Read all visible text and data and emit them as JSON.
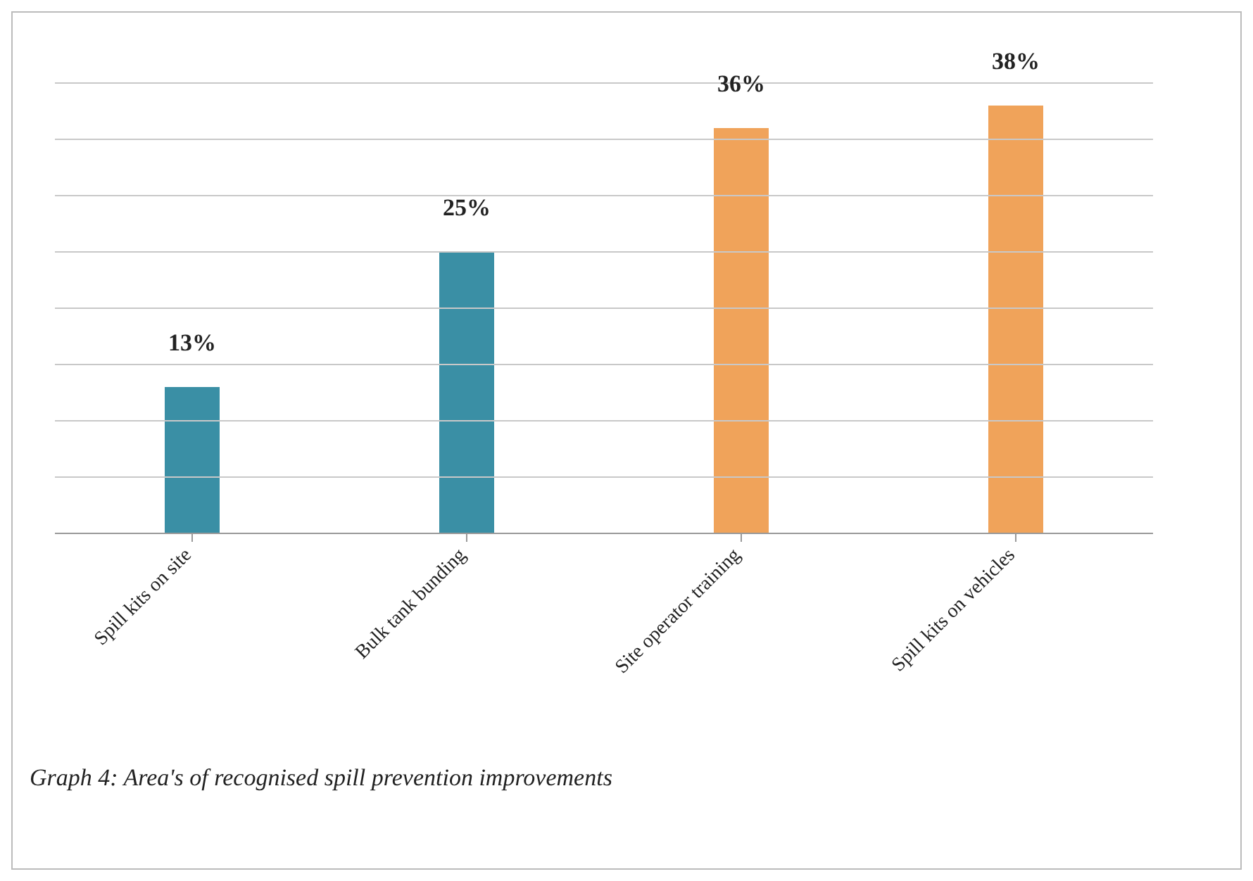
{
  "chart_data": {
    "type": "bar",
    "categories": [
      "Spill kits on site",
      "Bulk tank bunding",
      "Site operator training",
      "Spill kits on vehicles"
    ],
    "values": [
      13,
      25,
      36,
      38
    ],
    "value_labels": [
      "13%",
      "25%",
      "36%",
      "38%"
    ],
    "colors": [
      "#3a8fa5",
      "#3a8fa5",
      "#f0a35a",
      "#f0a35a"
    ],
    "ylim": [
      0,
      40
    ],
    "yticks": [
      {
        "value": 0,
        "label": null
      },
      {
        "value": 5,
        "label": null
      },
      {
        "value": 10,
        "label": null
      },
      {
        "value": 15,
        "label": null
      },
      {
        "value": 20,
        "label": null
      },
      {
        "value": 25,
        "label": null
      },
      {
        "value": 30,
        "label": null
      },
      {
        "value": 35,
        "label": null
      },
      {
        "value": 40,
        "label": null
      }
    ],
    "grid": "y",
    "legend": false,
    "tick_labels": "x",
    "annotations": [
      "Graph 4: Area's of recognised spill prevention improvements"
    ]
  }
}
